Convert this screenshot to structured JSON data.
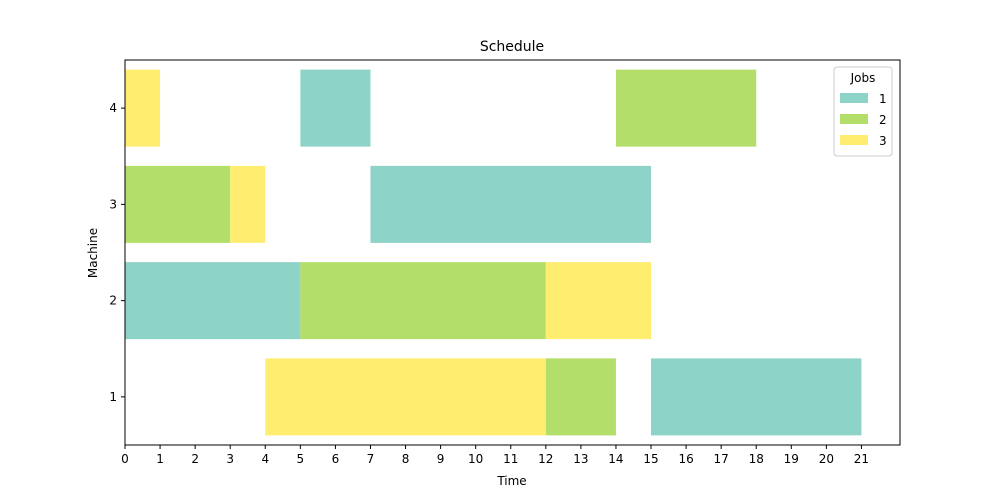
{
  "chart_data": {
    "type": "gantt",
    "title": "Schedule",
    "xlabel": "Time",
    "ylabel": "Machine",
    "xlim": [
      0,
      22.1
    ],
    "x_ticks": [
      0,
      1,
      2,
      3,
      4,
      5,
      6,
      7,
      8,
      9,
      10,
      11,
      12,
      13,
      14,
      15,
      16,
      17,
      18,
      19,
      20,
      21
    ],
    "machines": [
      1,
      2,
      3,
      4
    ],
    "legend": {
      "title": "Jobs",
      "position": "top-right",
      "entries": [
        {
          "label": "1",
          "color": "#8dd3c7"
        },
        {
          "label": "2",
          "color": "#b3de69"
        },
        {
          "label": "3",
          "color": "#ffed6f"
        }
      ]
    },
    "tasks": [
      {
        "machine": 1,
        "job": "3",
        "start": 4,
        "end": 12
      },
      {
        "machine": 1,
        "job": "2",
        "start": 12,
        "end": 14
      },
      {
        "machine": 1,
        "job": "1",
        "start": 15,
        "end": 21
      },
      {
        "machine": 2,
        "job": "1",
        "start": 0,
        "end": 5
      },
      {
        "machine": 2,
        "job": "2",
        "start": 5,
        "end": 12
      },
      {
        "machine": 2,
        "job": "3",
        "start": 12,
        "end": 15
      },
      {
        "machine": 3,
        "job": "2",
        "start": 0,
        "end": 3
      },
      {
        "machine": 3,
        "job": "3",
        "start": 3,
        "end": 4
      },
      {
        "machine": 3,
        "job": "1",
        "start": 7,
        "end": 15
      },
      {
        "machine": 4,
        "job": "3",
        "start": 0,
        "end": 1
      },
      {
        "machine": 4,
        "job": "1",
        "start": 5,
        "end": 7
      },
      {
        "machine": 4,
        "job": "2",
        "start": 14,
        "end": 18
      }
    ]
  }
}
